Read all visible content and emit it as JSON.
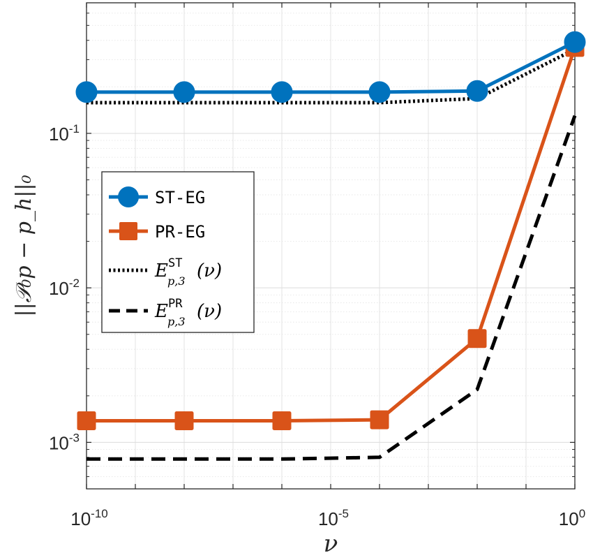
{
  "chart_data": {
    "type": "line",
    "xscale": "log",
    "yscale": "log",
    "xlabel": "ν",
    "ylabel": "||𝒫₀p − p_h||₀",
    "xlim": [
      1e-10,
      1
    ],
    "ylim": [
      0.0005,
      0.7
    ],
    "grid": true,
    "minor_grid_y": true,
    "legend_position": "center-left",
    "x_ticks": [
      {
        "value": 1e-10,
        "base": "10",
        "exp": "-10"
      },
      {
        "value": 1e-05,
        "base": "10",
        "exp": "-5"
      },
      {
        "value": 1,
        "base": "10",
        "exp": "0"
      }
    ],
    "y_ticks": [
      {
        "value": 0.001,
        "base": "10",
        "exp": "-3"
      },
      {
        "value": 0.01,
        "base": "10",
        "exp": "-2"
      },
      {
        "value": 0.1,
        "base": "10",
        "exp": "-1"
      }
    ],
    "x": [
      1e-10,
      1e-08,
      1e-06,
      0.0001,
      0.01,
      1
    ],
    "series": [
      {
        "name": "ST-EG",
        "legend_label": "ST-EG",
        "color": "#0072BD",
        "style": "solid",
        "marker": "circle",
        "values": [
          0.185,
          0.185,
          0.185,
          0.185,
          0.188,
          0.39
        ]
      },
      {
        "name": "PR-EG",
        "legend_label": "PR-EG",
        "color": "#D95319",
        "style": "solid",
        "marker": "square",
        "values": [
          0.00138,
          0.00138,
          0.00138,
          0.0014,
          0.0047,
          0.36
        ]
      },
      {
        "name": "E_ST",
        "legend_base": "E",
        "legend_sup": "ST",
        "legend_sub": "p,3",
        "legend_arg": "(ν)",
        "color": "#000000",
        "style": "dotted",
        "marker": "none",
        "values": [
          0.158,
          0.158,
          0.158,
          0.158,
          0.168,
          0.35
        ]
      },
      {
        "name": "E_PR",
        "legend_base": "E",
        "legend_sup": "PR",
        "legend_sub": "p,3",
        "legend_arg": "(ν)",
        "color": "#000000",
        "style": "dashed",
        "marker": "none",
        "values": [
          0.00078,
          0.00078,
          0.00078,
          0.0008,
          0.0022,
          0.13
        ]
      }
    ]
  }
}
